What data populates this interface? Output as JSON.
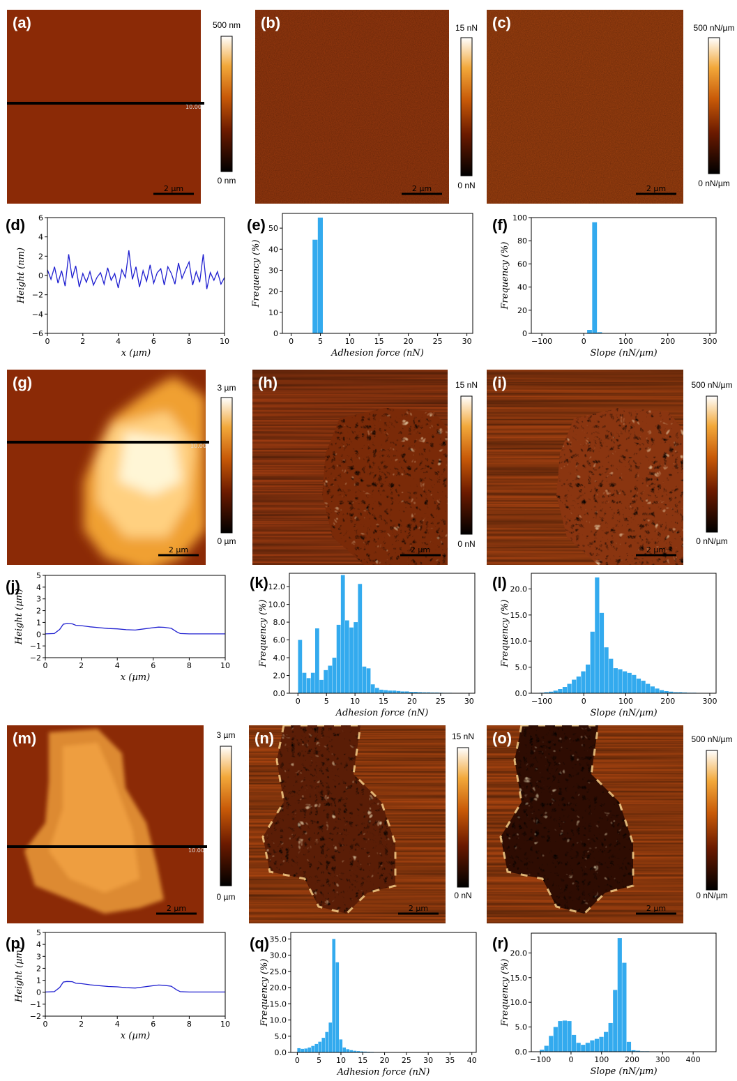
{
  "figure": {
    "rows": [
      {
        "maps": [
          {
            "label": "(a)",
            "colorbar": {
              "max": "500 nm",
              "min": "0 nm"
            },
            "scalebar": "2 µm",
            "line_marker": "10.00",
            "variant": "flat",
            "shade": "#8b2a06"
          },
          {
            "label": "(b)",
            "colorbar": {
              "max": "15 nN",
              "min": "0 nN"
            },
            "scalebar": "2 µm",
            "variant": "noise",
            "shade": "#9c3a0e"
          },
          {
            "label": "(c)",
            "colorbar": {
              "max": "500 nN/µm",
              "min": "0 nN/µm"
            },
            "scalebar": "2 µm",
            "variant": "noise",
            "shade": "#a2410f"
          }
        ]
      },
      {
        "maps": [
          {
            "label": "(g)",
            "colorbar": {
              "max": "3 µm",
              "min": "0 µm"
            },
            "scalebar": "2 µm",
            "line_marker": "10.00",
            "variant": "blob-height-1",
            "shade": "#8b2a06"
          },
          {
            "label": "(h)",
            "colorbar": {
              "max": "15 nN",
              "min": "0 nN"
            },
            "scalebar": "2 µm",
            "variant": "blob-adhesion-1",
            "shade": "#9a3a10"
          },
          {
            "label": "(i)",
            "colorbar": {
              "max": "500 nN/µm",
              "min": "0 nN/µm"
            },
            "scalebar": "2 µm",
            "variant": "blob-slope-1",
            "shade": "#9f3f10"
          }
        ]
      },
      {
        "maps": [
          {
            "label": "(m)",
            "colorbar": {
              "max": "3 µm",
              "min": "0 µm"
            },
            "scalebar": "2 µm",
            "line_marker": "10.00",
            "variant": "blob-height-2",
            "shade": "#8b2a06"
          },
          {
            "label": "(n)",
            "colorbar": {
              "max": "15 nN",
              "min": "0 nN"
            },
            "scalebar": "2 µm",
            "variant": "blob-adhesion-2",
            "shade": "#a4420f"
          },
          {
            "label": "(o)",
            "colorbar": {
              "max": "500 nN/µm",
              "min": "0 nN/µm"
            },
            "scalebar": "2 µm",
            "variant": "blob-slope-2",
            "shade": "#a4420f"
          }
        ]
      }
    ]
  },
  "chart_data": [
    {
      "label": "(d)",
      "type": "line",
      "xlabel": "x (µm)",
      "ylabel": "Height (nm)",
      "xlim": [
        0,
        10
      ],
      "ylim": [
        -6,
        6
      ],
      "xticks": [
        0,
        2,
        4,
        6,
        8,
        10
      ],
      "yticks": [
        -6,
        -4,
        -2,
        0,
        2,
        4,
        6
      ],
      "tick_labels_x": [
        "0",
        "2",
        "4",
        "6",
        "8",
        "10"
      ],
      "tick_labels_y": [
        "−6",
        "−4",
        "−2",
        "0",
        "2",
        "4",
        "6"
      ],
      "series": [
        {
          "color": "#1f1fd0",
          "x": [
            0,
            0.2,
            0.4,
            0.6,
            0.8,
            1.0,
            1.2,
            1.4,
            1.6,
            1.8,
            2.0,
            2.2,
            2.4,
            2.6,
            2.8,
            3.0,
            3.2,
            3.4,
            3.6,
            3.8,
            4.0,
            4.2,
            4.4,
            4.6,
            4.8,
            5.0,
            5.2,
            5.4,
            5.6,
            5.8,
            6.0,
            6.2,
            6.4,
            6.6,
            6.8,
            7.0,
            7.2,
            7.4,
            7.6,
            7.8,
            8.0,
            8.2,
            8.4,
            8.6,
            8.8,
            9.0,
            9.2,
            9.4,
            9.6,
            9.8,
            10.0
          ],
          "y": [
            0.6,
            -0.4,
            0.9,
            -0.8,
            0.5,
            -1.1,
            2.2,
            -0.3,
            1.0,
            -1.2,
            0.2,
            -0.7,
            0.4,
            -1.0,
            -0.2,
            0.3,
            -0.9,
            0.8,
            -0.5,
            0.2,
            -1.3,
            0.6,
            -0.2,
            2.6,
            -0.4,
            0.9,
            -1.2,
            0.5,
            -0.6,
            1.1,
            -0.8,
            0.3,
            0.7,
            -1.0,
            0.9,
            0.2,
            -0.9,
            1.3,
            -0.3,
            0.6,
            1.4,
            -1.0,
            0.4,
            -0.7,
            2.2,
            -1.4,
            0.3,
            -0.5,
            0.4,
            -0.9,
            -0.2
          ]
        }
      ]
    },
    {
      "label": "(e)",
      "type": "bar",
      "xlabel": "Adhesion force (nN)",
      "ylabel": "Frequency (%)",
      "xlim": [
        -1.5,
        31
      ],
      "ylim": [
        0,
        57
      ],
      "xticks": [
        0,
        5,
        10,
        15,
        20,
        25,
        30
      ],
      "yticks": [
        0,
        10,
        20,
        30,
        40,
        50
      ],
      "tick_labels_x": [
        "0",
        "5",
        "10",
        "15",
        "20",
        "25",
        "30"
      ],
      "tick_labels_y": [
        "0",
        "10",
        "20",
        "30",
        "40",
        "50"
      ],
      "bin_width": 0.9,
      "bins": [
        4.1,
        5.0
      ],
      "values": [
        44.5,
        55.0
      ]
    },
    {
      "label": "(f)",
      "type": "bar",
      "xlabel": "Slope (nN/µm)",
      "ylabel": "Frequency (%)",
      "xlim": [
        -125,
        315
      ],
      "ylim": [
        0,
        100
      ],
      "xticks": [
        -100,
        0,
        100,
        200,
        300
      ],
      "yticks": [
        0,
        20,
        40,
        60,
        80,
        100
      ],
      "tick_labels_x": [
        "−100",
        "0",
        "100",
        "200",
        "300"
      ],
      "tick_labels_y": [
        "0",
        "20",
        "40",
        "60",
        "80",
        "100"
      ],
      "bin_width": 12,
      "bins": [
        14,
        26,
        38
      ],
      "values": [
        3,
        96,
        1
      ]
    },
    {
      "label": "(j)",
      "type": "line",
      "xlabel": "x (µm)",
      "ylabel": "Height (µm)",
      "xlim": [
        0,
        10
      ],
      "ylim": [
        -2,
        5
      ],
      "xticks": [
        0,
        2,
        4,
        6,
        8,
        10
      ],
      "yticks": [
        -2,
        -1,
        0,
        1,
        2,
        3,
        4,
        5
      ],
      "tick_labels_x": [
        "0",
        "2",
        "4",
        "6",
        "8",
        "10"
      ],
      "tick_labels_y": [
        "−2",
        "−1",
        "0",
        "1",
        "2",
        "3",
        "4",
        "5"
      ],
      "series": [
        {
          "color": "#1f1fd0",
          "x": [
            0,
            0.5,
            0.8,
            1.0,
            1.2,
            1.5,
            1.7,
            2.0,
            2.5,
            3.0,
            3.5,
            4.0,
            4.5,
            5.0,
            5.5,
            6.0,
            6.3,
            6.6,
            7.0,
            7.3,
            7.5,
            8.0,
            9.0,
            10.0
          ],
          "y": [
            0.02,
            0.05,
            0.4,
            0.85,
            0.9,
            0.88,
            0.75,
            0.72,
            0.62,
            0.55,
            0.48,
            0.45,
            0.38,
            0.35,
            0.45,
            0.55,
            0.6,
            0.58,
            0.5,
            0.2,
            0.05,
            0.02,
            0.02,
            0.02
          ]
        }
      ]
    },
    {
      "label": "(k)",
      "type": "bar",
      "xlabel": "Adhesion force (nN)",
      "ylabel": "Frequency (%)",
      "xlim": [
        -1.5,
        31
      ],
      "ylim": [
        0,
        13.5
      ],
      "xticks": [
        0,
        5,
        10,
        15,
        20,
        25,
        30
      ],
      "yticks": [
        0,
        2,
        4,
        6,
        8,
        10,
        12
      ],
      "tick_labels_x": [
        "0",
        "5",
        "10",
        "15",
        "20",
        "25",
        "30"
      ],
      "tick_labels_y": [
        "0.0",
        "2.0",
        "4.0",
        "6.0",
        "8.0",
        "10.0",
        "12.0"
      ],
      "bin_width": 0.75,
      "bins": [
        0.4,
        1.15,
        1.9,
        2.65,
        3.4,
        4.15,
        4.9,
        5.65,
        6.4,
        7.15,
        7.9,
        8.65,
        9.4,
        10.15,
        10.9,
        11.65,
        12.4,
        13.15,
        13.9,
        14.65,
        15.4,
        16.15,
        16.9,
        17.65,
        18.4,
        19.15,
        19.9,
        20.65,
        21.4,
        22.15,
        22.9,
        23.65,
        24.4,
        25.15,
        25.9,
        26.65,
        27.4,
        28.15,
        28.9,
        29.65
      ],
      "values": [
        6.0,
        2.3,
        1.7,
        2.3,
        7.3,
        1.5,
        2.6,
        3.1,
        4.0,
        7.7,
        13.3,
        8.2,
        7.4,
        8.0,
        12.3,
        3.0,
        2.8,
        1.0,
        0.6,
        0.4,
        0.35,
        0.3,
        0.3,
        0.25,
        0.2,
        0.2,
        0.15,
        0.15,
        0.12,
        0.1,
        0.1,
        0.08,
        0.08,
        0.06,
        0.05,
        0.05,
        0.04,
        0.03,
        0.03,
        0.02
      ]
    },
    {
      "label": "(l)",
      "type": "bar",
      "xlabel": "Slope (nN/µm)",
      "ylabel": "Frequency (%)",
      "xlim": [
        -125,
        315
      ],
      "ylim": [
        0,
        23
      ],
      "xticks": [
        -100,
        0,
        100,
        200,
        300
      ],
      "yticks": [
        0,
        5,
        10,
        15,
        20
      ],
      "tick_labels_x": [
        "−100",
        "0",
        "100",
        "200",
        "300"
      ],
      "tick_labels_y": [
        "0.0",
        "5.0",
        "10.0",
        "15.0",
        "20.0"
      ],
      "bin_width": 11,
      "bins": [
        -100,
        -89,
        -78,
        -67,
        -56,
        -45,
        -34,
        -23,
        -12,
        -1,
        10,
        21,
        32,
        43,
        54,
        65,
        76,
        87,
        98,
        109,
        120,
        131,
        142,
        153,
        164,
        175,
        186,
        197,
        208,
        219,
        230,
        241,
        252,
        263,
        274,
        285,
        296
      ],
      "values": [
        0.1,
        0.2,
        0.3,
        0.5,
        0.8,
        1.2,
        1.8,
        2.6,
        3.2,
        4.2,
        5.5,
        11.8,
        22.2,
        15.4,
        8.8,
        6.6,
        4.8,
        4.6,
        4.2,
        3.9,
        3.5,
        2.8,
        2.4,
        1.8,
        1.3,
        0.9,
        0.6,
        0.4,
        0.3,
        0.2,
        0.2,
        0.15,
        0.1,
        0.1,
        0.05,
        0.05,
        0.05
      ]
    },
    {
      "label": "(p)",
      "type": "line",
      "xlabel": "x (µm)",
      "ylabel": "Height (µm)",
      "xlim": [
        0,
        10
      ],
      "ylim": [
        -2,
        5
      ],
      "xticks": [
        0,
        2,
        4,
        6,
        8,
        10
      ],
      "yticks": [
        -2,
        -1,
        0,
        1,
        2,
        3,
        4,
        5
      ],
      "tick_labels_x": [
        "0",
        "2",
        "4",
        "6",
        "8",
        "10"
      ],
      "tick_labels_y": [
        "−2",
        "−1",
        "0",
        "1",
        "2",
        "3",
        "4",
        "5"
      ],
      "series": [
        {
          "color": "#1f1fd0",
          "x": [
            0,
            0.5,
            0.8,
            1.0,
            1.2,
            1.5,
            1.7,
            2.0,
            2.5,
            3.0,
            3.5,
            4.0,
            4.5,
            5.0,
            5.5,
            6.0,
            6.3,
            6.6,
            7.0,
            7.3,
            7.5,
            8.0,
            9.0,
            10.0
          ],
          "y": [
            0.02,
            0.05,
            0.4,
            0.85,
            0.9,
            0.88,
            0.75,
            0.72,
            0.62,
            0.55,
            0.48,
            0.45,
            0.38,
            0.35,
            0.45,
            0.55,
            0.6,
            0.58,
            0.5,
            0.2,
            0.05,
            0.02,
            0.02,
            0.02
          ]
        }
      ]
    },
    {
      "label": "(q)",
      "type": "bar",
      "xlabel": "Adhesion force (nN)",
      "ylabel": "Frequency (%)",
      "xlim": [
        -1.5,
        41
      ],
      "ylim": [
        0,
        37
      ],
      "xticks": [
        0,
        5,
        10,
        15,
        20,
        25,
        30,
        35,
        40
      ],
      "yticks": [
        0,
        5,
        10,
        15,
        20,
        25,
        30,
        35
      ],
      "tick_labels_x": [
        "0",
        "5",
        "10",
        "15",
        "20",
        "25",
        "30",
        "35",
        "40"
      ],
      "tick_labels_y": [
        "0.0",
        "5.0",
        "10.0",
        "15.0",
        "20.0",
        "25.0",
        "30.0",
        "35.0"
      ],
      "bin_width": 0.8,
      "bins": [
        0.4,
        1.2,
        2.0,
        2.8,
        3.6,
        4.4,
        5.2,
        6.0,
        6.8,
        7.6,
        8.4,
        9.2,
        10.0,
        10.8,
        11.6,
        12.4,
        13.2,
        14.0,
        14.8,
        15.6,
        16.4,
        17.2,
        18.0,
        18.8,
        19.6,
        20.4
      ],
      "values": [
        1.3,
        1.1,
        1.2,
        1.5,
        2.0,
        2.6,
        3.3,
        4.5,
        6.3,
        9.2,
        35.0,
        27.8,
        4.0,
        1.5,
        1.0,
        0.7,
        0.5,
        0.4,
        0.3,
        0.25,
        0.2,
        0.15,
        0.1,
        0.1,
        0.05,
        0.05
      ]
    },
    {
      "label": "(r)",
      "type": "bar",
      "xlabel": "Slope (nN/µm)",
      "ylabel": "Frequency (%)",
      "xlim": [
        -130,
        475
      ],
      "ylim": [
        0,
        24
      ],
      "xticks": [
        -100,
        0,
        100,
        200,
        300,
        400
      ],
      "yticks": [
        0,
        5,
        10,
        15,
        20
      ],
      "tick_labels_x": [
        "−100",
        "0",
        "100",
        "200",
        "300",
        "400"
      ],
      "tick_labels_y": [
        "0.0",
        "5.0",
        "10.0",
        "15.0",
        "20.0"
      ],
      "bin_width": 15,
      "bins": [
        -95,
        -80,
        -65,
        -50,
        -35,
        -20,
        -5,
        10,
        25,
        40,
        55,
        70,
        85,
        100,
        115,
        130,
        145,
        160,
        175,
        190,
        205,
        220,
        235,
        250,
        265,
        280
      ],
      "values": [
        0.4,
        1.2,
        3.2,
        5.0,
        6.2,
        6.3,
        6.2,
        3.4,
        1.8,
        1.4,
        1.8,
        2.3,
        2.6,
        3.0,
        4.0,
        5.8,
        12.5,
        23.0,
        18.0,
        2.0,
        0.3,
        0.2,
        0.1,
        0.1,
        0.05,
        0.05
      ]
    }
  ]
}
